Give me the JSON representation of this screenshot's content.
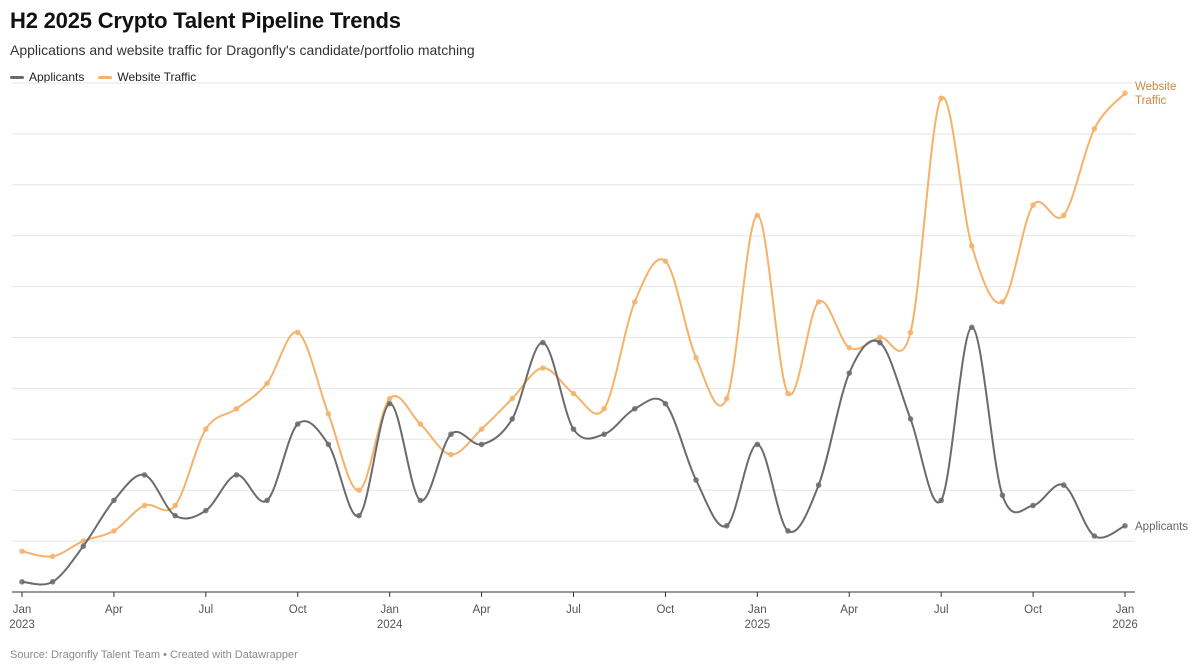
{
  "chart_data": {
    "type": "line",
    "title": "H2 2025 Crypto Talent Pipeline Trends",
    "subtitle": "Applications and website traffic for Dragonfly's candidate/portfolio matching",
    "source": "Source: Dragonfly Talent Team • Created with Datawrapper",
    "xlabel": "",
    "ylabel": "",
    "ylim": [
      0,
      11
    ],
    "grid": true,
    "legend_position": "top-left",
    "x_ticks": [
      {
        "index": 0,
        "line1": "Jan",
        "line2": "2023"
      },
      {
        "index": 3,
        "line1": "Apr",
        "line2": ""
      },
      {
        "index": 6,
        "line1": "Jul",
        "line2": ""
      },
      {
        "index": 9,
        "line1": "Oct",
        "line2": ""
      },
      {
        "index": 12,
        "line1": "Jan",
        "line2": "2024"
      },
      {
        "index": 15,
        "line1": "Apr",
        "line2": ""
      },
      {
        "index": 18,
        "line1": "Jul",
        "line2": ""
      },
      {
        "index": 21,
        "line1": "Oct",
        "line2": ""
      },
      {
        "index": 24,
        "line1": "Jan",
        "line2": "2025"
      },
      {
        "index": 27,
        "line1": "Apr",
        "line2": ""
      },
      {
        "index": 30,
        "line1": "Jul",
        "line2": ""
      },
      {
        "index": 33,
        "line1": "Oct",
        "line2": ""
      },
      {
        "index": 36,
        "line1": "Jan",
        "line2": "2026"
      }
    ],
    "series": [
      {
        "name": "Applicants",
        "color": "#6b6b6b",
        "end_label": [
          "Applicants"
        ],
        "values": [
          0.2,
          0.2,
          0.9,
          1.8,
          2.3,
          1.5,
          1.6,
          2.3,
          1.8,
          3.3,
          2.9,
          1.5,
          3.7,
          1.8,
          3.1,
          2.9,
          3.4,
          4.9,
          3.2,
          3.1,
          3.6,
          3.7,
          2.2,
          1.3,
          2.9,
          1.2,
          2.1,
          4.3,
          4.9,
          3.4,
          1.8,
          5.2,
          1.9,
          1.7,
          2.1,
          1.1,
          1.3
        ]
      },
      {
        "name": "Website Traffic",
        "color": "#f5b26b",
        "end_label": [
          "Website",
          "Traffic"
        ],
        "values": [
          0.8,
          0.7,
          1.0,
          1.2,
          1.7,
          1.7,
          3.2,
          3.6,
          4.1,
          5.1,
          3.5,
          2.0,
          3.8,
          3.3,
          2.7,
          3.2,
          3.8,
          4.4,
          3.9,
          3.6,
          5.7,
          6.5,
          4.6,
          3.8,
          7.4,
          3.9,
          5.7,
          4.8,
          5.0,
          5.1,
          9.7,
          6.8,
          5.7,
          7.6,
          7.4,
          9.1,
          9.8
        ]
      }
    ]
  }
}
